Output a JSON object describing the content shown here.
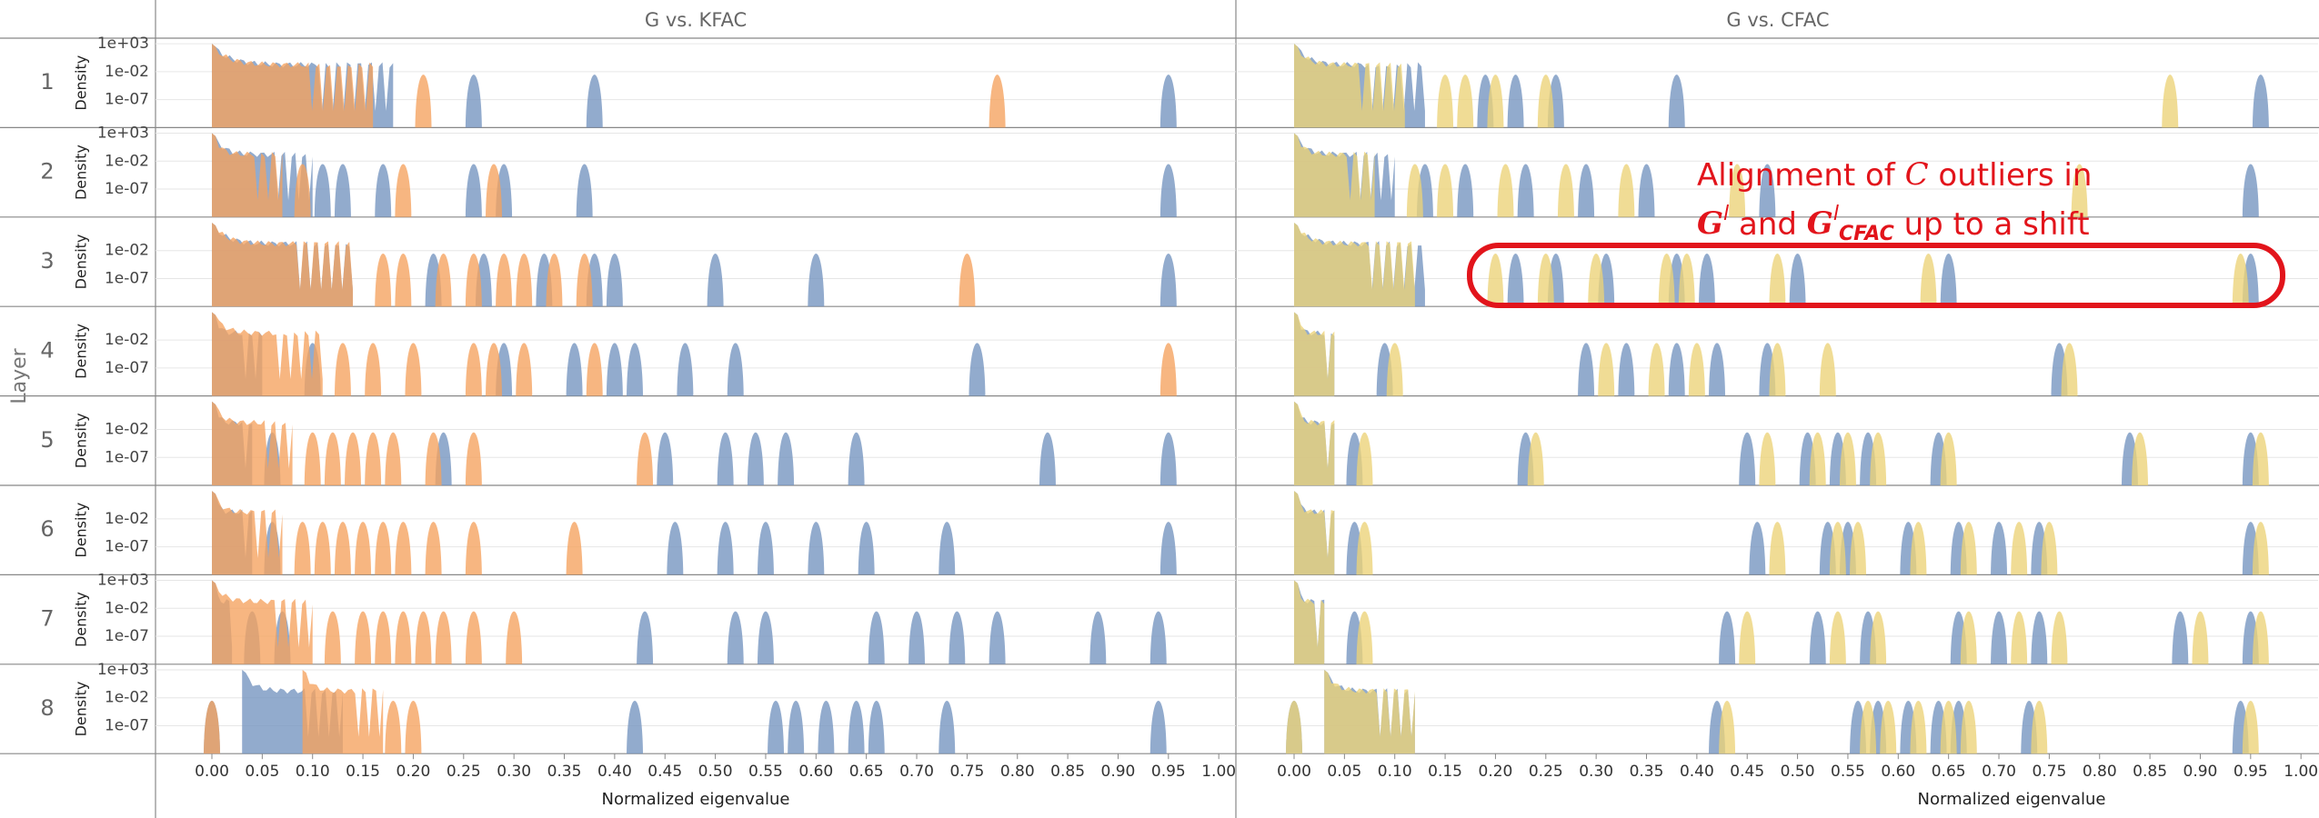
{
  "chart_data": {
    "type": "density",
    "row_axis_title": "Layer",
    "y_label": "Density",
    "x_label": "Normalized eigenvalue",
    "yscale": "log",
    "grid": true,
    "ylim": [
      1e-12,
      10000
    ],
    "xlim": [
      -0.056,
      1.017
    ],
    "xticks": [
      {
        "value": 0,
        "label": "0.00"
      },
      {
        "value": 0.05,
        "label": "0.05"
      },
      {
        "value": 0.1,
        "label": "0.10"
      },
      {
        "value": 0.15,
        "label": "0.15"
      },
      {
        "value": 0.2,
        "label": "0.20"
      },
      {
        "value": 0.25,
        "label": "0.25"
      },
      {
        "value": 0.3,
        "label": "0.30"
      },
      {
        "value": 0.35,
        "label": "0.35"
      },
      {
        "value": 0.4,
        "label": "0.40"
      },
      {
        "value": 0.45,
        "label": "0.45"
      },
      {
        "value": 0.5,
        "label": "0.50"
      },
      {
        "value": 0.55,
        "label": "0.55"
      },
      {
        "value": 0.6,
        "label": "0.60"
      },
      {
        "value": 0.65,
        "label": "0.65"
      },
      {
        "value": 0.7,
        "label": "0.70"
      },
      {
        "value": 0.75,
        "label": "0.75"
      },
      {
        "value": 0.8,
        "label": "0.80"
      },
      {
        "value": 0.85,
        "label": "0.85"
      },
      {
        "value": 0.9,
        "label": "0.90"
      },
      {
        "value": 0.95,
        "label": "0.95"
      },
      {
        "value": 1,
        "label": "1.00"
      }
    ],
    "layers": [
      {
        "label": "1",
        "yticks": [
          {
            "value": 1000,
            "label": "1e+03"
          },
          {
            "value": 0.01,
            "label": "1e-02"
          },
          {
            "value": 1e-07,
            "label": "1e-07"
          }
        ]
      },
      {
        "label": "2",
        "yticks": [
          {
            "value": 1000,
            "label": "1e+03"
          },
          {
            "value": 0.01,
            "label": "1e-02"
          },
          {
            "value": 1e-07,
            "label": "1e-07"
          }
        ]
      },
      {
        "label": "3",
        "yticks": [
          {
            "value": 0.01,
            "label": "1e-02"
          },
          {
            "value": 1e-07,
            "label": "1e-07"
          }
        ]
      },
      {
        "label": "4",
        "yticks": [
          {
            "value": 0.01,
            "label": "1e-02"
          },
          {
            "value": 1e-07,
            "label": "1e-07"
          }
        ]
      },
      {
        "label": "5",
        "yticks": [
          {
            "value": 0.01,
            "label": "1e-02"
          },
          {
            "value": 1e-07,
            "label": "1e-07"
          }
        ]
      },
      {
        "label": "6",
        "yticks": [
          {
            "value": 0.01,
            "label": "1e-02"
          },
          {
            "value": 1e-07,
            "label": "1e-07"
          }
        ]
      },
      {
        "label": "7",
        "yticks": [
          {
            "value": 1000,
            "label": "1e+03"
          },
          {
            "value": 0.01,
            "label": "1e-02"
          },
          {
            "value": 1e-07,
            "label": "1e-07"
          }
        ]
      },
      {
        "label": "8",
        "yticks": [
          {
            "value": 1000,
            "label": "1e+03"
          },
          {
            "value": 0.01,
            "label": "1e-02"
          },
          {
            "value": 1e-07,
            "label": "1e-07"
          }
        ]
      }
    ],
    "panels": [
      {
        "title": "G vs. KFAC",
        "series": [
          {
            "color": "#7394bf",
            "layers": [
              {
                "bulk": [
                  0,
                  0.18
                ],
                "outliers": [
                  0.26,
                  0.38,
                  0.95
                ]
              },
              {
                "bulk": [
                  0,
                  0.1
                ],
                "outliers": [
                  0.11,
                  0.13,
                  0.17,
                  0.26,
                  0.29,
                  0.37,
                  0.95
                ]
              },
              {
                "bulk": [
                  0,
                  0.14
                ],
                "outliers": [
                  0.22,
                  0.27,
                  0.33,
                  0.38,
                  0.4,
                  0.5,
                  0.6,
                  0.95
                ]
              },
              {
                "bulk": [
                  0,
                  0.05
                ],
                "outliers": [
                  0.1,
                  0.29,
                  0.36,
                  0.4,
                  0.42,
                  0.47,
                  0.52,
                  0.76
                ]
              },
              {
                "bulk": [
                  0,
                  0.04
                ],
                "outliers": [
                  0.06,
                  0.23,
                  0.45,
                  0.51,
                  0.54,
                  0.57,
                  0.64,
                  0.83,
                  0.95
                ]
              },
              {
                "bulk": [
                  0,
                  0.04
                ],
                "outliers": [
                  0.06,
                  0.46,
                  0.51,
                  0.55,
                  0.6,
                  0.65,
                  0.73,
                  0.95
                ]
              },
              {
                "bulk": [
                  0,
                  0.02
                ],
                "outliers": [
                  0.04,
                  0.07,
                  0.43,
                  0.52,
                  0.55,
                  0.66,
                  0.7,
                  0.74,
                  0.78,
                  0.88,
                  0.94
                ]
              },
              {
                "bulk": [
                  0.03,
                  0.13
                ],
                "outliers": [
                  0,
                  0.42,
                  0.56,
                  0.58,
                  0.61,
                  0.64,
                  0.66,
                  0.73,
                  0.94
                ]
              }
            ]
          },
          {
            "color": "#f5a25d",
            "layers": [
              {
                "bulk": [
                  0,
                  0.16
                ],
                "outliers": [
                  0.21,
                  0.78
                ]
              },
              {
                "bulk": [
                  0,
                  0.07
                ],
                "outliers": [
                  0.09,
                  0.19,
                  0.28
                ]
              },
              {
                "bulk": [
                  0,
                  0.14
                ],
                "outliers": [
                  0.17,
                  0.19,
                  0.23,
                  0.26,
                  0.29,
                  0.31,
                  0.34,
                  0.37,
                  0.75
                ]
              },
              {
                "bulk": [
                  0,
                  0.11
                ],
                "outliers": [
                  0.13,
                  0.16,
                  0.2,
                  0.26,
                  0.28,
                  0.31,
                  0.38,
                  0.95
                ]
              },
              {
                "bulk": [
                  0,
                  0.08
                ],
                "outliers": [
                  0.1,
                  0.12,
                  0.14,
                  0.16,
                  0.18,
                  0.22,
                  0.26,
                  0.43
                ]
              },
              {
                "bulk": [
                  0,
                  0.07
                ],
                "outliers": [
                  0.09,
                  0.11,
                  0.13,
                  0.15,
                  0.17,
                  0.19,
                  0.22,
                  0.26,
                  0.36
                ]
              },
              {
                "bulk": [
                  0,
                  0.1
                ],
                "outliers": [
                  0.12,
                  0.15,
                  0.17,
                  0.19,
                  0.21,
                  0.23,
                  0.26,
                  0.3
                ]
              },
              {
                "bulk": [
                  0.09,
                  0.17
                ],
                "outliers": [
                  0,
                  0.18,
                  0.2
                ]
              }
            ]
          }
        ]
      },
      {
        "title": "G vs. CFAC",
        "series": [
          {
            "color": "#7394bf",
            "layers": [
              {
                "bulk": [
                  0,
                  0.13
                ],
                "outliers": [
                  0.19,
                  0.22,
                  0.26,
                  0.38,
                  0.96
                ]
              },
              {
                "bulk": [
                  0,
                  0.1
                ],
                "outliers": [
                  0.13,
                  0.17,
                  0.23,
                  0.29,
                  0.35,
                  0.47,
                  0.95
                ]
              },
              {
                "bulk": [
                  0,
                  0.13
                ],
                "outliers": [
                  0.22,
                  0.26,
                  0.31,
                  0.38,
                  0.41,
                  0.5,
                  0.65,
                  0.95
                ]
              },
              {
                "bulk": [
                  0,
                  0.04
                ],
                "outliers": [
                  0.09,
                  0.29,
                  0.33,
                  0.38,
                  0.42,
                  0.47,
                  0.76
                ]
              },
              {
                "bulk": [
                  0,
                  0.04
                ],
                "outliers": [
                  0.06,
                  0.23,
                  0.45,
                  0.51,
                  0.54,
                  0.57,
                  0.64,
                  0.83,
                  0.95
                ]
              },
              {
                "bulk": [
                  0,
                  0.04
                ],
                "outliers": [
                  0.06,
                  0.46,
                  0.53,
                  0.55,
                  0.61,
                  0.66,
                  0.7,
                  0.74,
                  0.95
                ]
              },
              {
                "bulk": [
                  0,
                  0.03
                ],
                "outliers": [
                  0.06,
                  0.43,
                  0.52,
                  0.57,
                  0.66,
                  0.7,
                  0.74,
                  0.88,
                  0.95
                ]
              },
              {
                "bulk": [
                  0.03,
                  0.12
                ],
                "outliers": [
                  0,
                  0.42,
                  0.56,
                  0.58,
                  0.61,
                  0.64,
                  0.66,
                  0.73,
                  0.94
                ]
              }
            ]
          },
          {
            "color": "#ecd277",
            "layers": [
              {
                "bulk": [
                  0,
                  0.11
                ],
                "outliers": [
                  0.15,
                  0.17,
                  0.2,
                  0.25,
                  0.87
                ]
              },
              {
                "bulk": [
                  0,
                  0.08
                ],
                "outliers": [
                  0.12,
                  0.15,
                  0.21,
                  0.27,
                  0.33,
                  0.44,
                  0.78
                ]
              },
              {
                "bulk": [
                  0,
                  0.12
                ],
                "outliers": [
                  0.2,
                  0.25,
                  0.3,
                  0.37,
                  0.39,
                  0.48,
                  0.63,
                  0.94
                ]
              },
              {
                "bulk": [
                  0,
                  0.04
                ],
                "outliers": [
                  0.1,
                  0.31,
                  0.36,
                  0.4,
                  0.48,
                  0.53,
                  0.77
                ]
              },
              {
                "bulk": [
                  0,
                  0.04
                ],
                "outliers": [
                  0.07,
                  0.24,
                  0.47,
                  0.52,
                  0.55,
                  0.58,
                  0.65,
                  0.84,
                  0.96
                ]
              },
              {
                "bulk": [
                  0,
                  0.04
                ],
                "outliers": [
                  0.07,
                  0.48,
                  0.54,
                  0.56,
                  0.62,
                  0.67,
                  0.72,
                  0.75,
                  0.96
                ]
              },
              {
                "bulk": [
                  0,
                  0.03
                ],
                "outliers": [
                  0.07,
                  0.45,
                  0.54,
                  0.58,
                  0.67,
                  0.72,
                  0.76,
                  0.9,
                  0.96
                ]
              },
              {
                "bulk": [
                  0.03,
                  0.12
                ],
                "outliers": [
                  0,
                  0.43,
                  0.57,
                  0.59,
                  0.62,
                  0.65,
                  0.67,
                  0.74,
                  0.95
                ]
              }
            ]
          }
        ]
      }
    ],
    "annotation": {
      "line1": [
        "Alignment of ",
        "C",
        " outliers in"
      ],
      "line2": [
        "G",
        "l",
        " and ",
        "G",
        "l",
        "CFAC",
        " up to a shift"
      ]
    }
  }
}
